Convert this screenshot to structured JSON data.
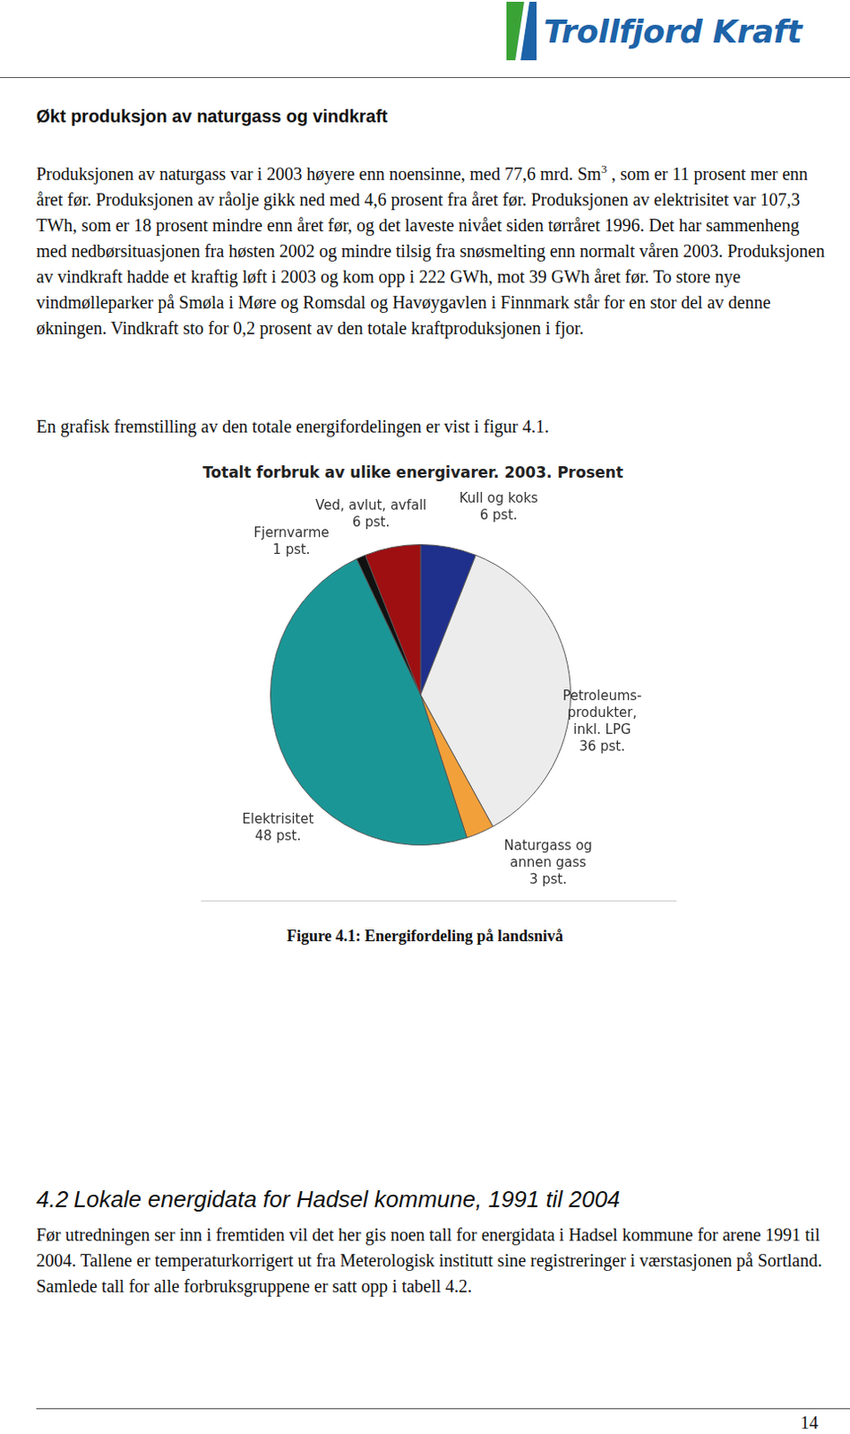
{
  "header": {
    "logo": "Trollfjord Kraft"
  },
  "heading": "Økt produksjon av naturgass og vindkraft",
  "paragraphs": [
    [
      {
        "text": "Produksjonen av naturgass var i 2003 høyere enn noensinne, med 77,6 mrd. Sm"
      },
      {
        "sup": "3"
      },
      {
        "text": " , som er 11 prosent mer enn året før. Produksjonen av råolje gikk ned med 4,6 prosent fra året før. Produksjonen av elektrisitet var 107,3 TWh, som er 18 prosent mindre enn året før, og det laveste nivået siden tørråret 1996. Det har sammenheng med nedbørsituasjonen fra høsten 2002 og mindre tilsig fra snøsmelting enn normalt våren 2003. Produksjonen av vindkraft hadde et kraftig løft i 2003 og kom opp i 222 GWh, mot 39 GWh året før. To store nye vindmølleparker på Smøla i Møre og Romsdal og Havøygavlen i Finnmark står for en stor del av denne økningen. Vindkraft sto for 0,2 prosent av den totale kraftproduksjonen i fjor."
      }
    ],
    [
      {
        "text": "En grafisk fremstilling av den totale energifordelingen er vist i figur 4.1."
      }
    ]
  ],
  "chart_data": {
    "type": "pie",
    "title": "Totalt forbruk av ulike energivarer. 2003. Prosent",
    "categories": [
      "Kull og koks",
      "Petroleums-\nprodukter,\ninkl. LPG",
      "Naturgass og\nannen gass",
      "Elektrisitet",
      "Fjernvarme",
      "Ved, avlut, avfall"
    ],
    "values": [
      6,
      36,
      3,
      48,
      1,
      6
    ],
    "value_labels": [
      "6 pst.",
      "36 pst.",
      "3 pst.",
      "48 pst.",
      "1 pst.",
      "6 pst."
    ],
    "colors": [
      "#1f2f8c",
      "#ececec",
      "#f2a03a",
      "#1b9696",
      "#111111",
      "#9e0f12"
    ],
    "data_labels": true
  },
  "caption": "Figure 4.1: Energifordeling på landsnivå",
  "section": {
    "number": "4.2",
    "title": "Lokale energidata for Hadsel kommune, 1991 til 2004",
    "text": "Før utredningen ser inn i fremtiden vil det her gis noen tall for energidata i Hadsel kommune for arene 1991 til 2004. Tallene er temperaturkorrigert ut fra Meterologisk institutt sine registreringer i værstasjonen på Sortland. Samlede tall for alle forbruksgruppene er satt opp i tabell 4.2."
  },
  "page_number": 14
}
